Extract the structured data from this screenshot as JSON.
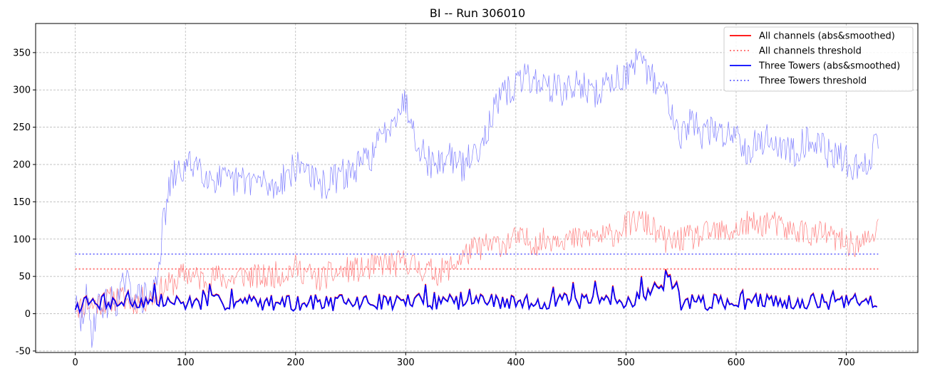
{
  "chart_data": {
    "type": "line",
    "title": "BI -- Run 306010",
    "xlabel": "",
    "ylabel": "",
    "xlim": [
      -36,
      765
    ],
    "ylim": [
      -52,
      389
    ],
    "xticks": [
      0,
      100,
      200,
      300,
      400,
      500,
      600,
      700
    ],
    "yticks": [
      -50,
      0,
      50,
      100,
      150,
      200,
      250,
      300,
      350
    ],
    "grid": true,
    "legend_position": "top-right",
    "colors": {
      "all_channels": "#ff0000",
      "three_towers": "#0000ff",
      "all_channels_threshold": "#ff6a6a",
      "three_towers_threshold": "#6b6bff",
      "all_channels_raw": "#ff8080",
      "three_towers_raw": "#8080ff"
    },
    "legend": [
      {
        "label": "All channels (abs&smoothed)",
        "color": "#ff0000",
        "style": "solid"
      },
      {
        "label": "All channels threshold",
        "color": "#ff6a6a",
        "style": "dotted"
      },
      {
        "label": "Three Towers (abs&smoothed)",
        "color": "#0000ff",
        "style": "solid"
      },
      {
        "label": "Three Towers threshold",
        "color": "#6b6bff",
        "style": "dotted"
      }
    ],
    "thresholds": [
      {
        "series": "All channels threshold",
        "value": 60,
        "x_range": [
          0,
          729
        ]
      },
      {
        "series": "Three Towers threshold",
        "value": 80,
        "x_range": [
          0,
          729
        ]
      }
    ],
    "raw_series_outline": [
      {
        "series": "All channels (raw)",
        "x": [
          0,
          5,
          10,
          15,
          20,
          30,
          40,
          50,
          60,
          70,
          80,
          90,
          100,
          110,
          120,
          130,
          140,
          150,
          160,
          170,
          180,
          190,
          200,
          210,
          220,
          230,
          240,
          250,
          260,
          270,
          280,
          290,
          300,
          310,
          320,
          330,
          340,
          350,
          360,
          370,
          380,
          390,
          400,
          410,
          420,
          430,
          440,
          450,
          460,
          470,
          480,
          490,
          500,
          510,
          520,
          530,
          540,
          550,
          560,
          570,
          580,
          590,
          600,
          610,
          620,
          630,
          640,
          650,
          660,
          670,
          680,
          690,
          700,
          710,
          720,
          729
        ],
        "y": [
          12,
          8,
          15,
          10,
          14,
          18,
          22,
          15,
          18,
          22,
          35,
          42,
          55,
          48,
          45,
          50,
          45,
          52,
          50,
          48,
          52,
          55,
          62,
          55,
          45,
          52,
          55,
          60,
          58,
          62,
          68,
          65,
          72,
          62,
          58,
          55,
          62,
          75,
          85,
          90,
          92,
          95,
          100,
          98,
          95,
          100,
          105,
          98,
          100,
          105,
          102,
          108,
          118,
          125,
          120,
          105,
          95,
          100,
          102,
          105,
          110,
          108,
          112,
          120,
          118,
          125,
          115,
          110,
          112,
          105,
          108,
          100,
          95,
          92,
          98,
          115
        ]
      },
      {
        "series": "Three Towers (raw)",
        "x": [
          0,
          5,
          10,
          15,
          20,
          30,
          40,
          45,
          50,
          60,
          70,
          75,
          80,
          85,
          90,
          100,
          110,
          120,
          130,
          140,
          150,
          160,
          170,
          180,
          190,
          200,
          210,
          220,
          230,
          240,
          250,
          260,
          270,
          280,
          290,
          300,
          310,
          320,
          330,
          340,
          350,
          360,
          370,
          380,
          390,
          400,
          410,
          420,
          430,
          440,
          450,
          460,
          470,
          480,
          490,
          500,
          510,
          520,
          530,
          540,
          550,
          560,
          570,
          580,
          590,
          600,
          610,
          620,
          630,
          640,
          650,
          660,
          670,
          680,
          690,
          700,
          710,
          720,
          729
        ],
        "y": [
          12,
          -15,
          20,
          -25,
          10,
          15,
          20,
          45,
          30,
          20,
          25,
          60,
          120,
          165,
          185,
          195,
          205,
          185,
          180,
          175,
          178,
          180,
          175,
          168,
          185,
          195,
          200,
          170,
          175,
          185,
          190,
          200,
          215,
          240,
          270,
          285,
          235,
          205,
          200,
          215,
          195,
          210,
          235,
          270,
          295,
          305,
          320,
          310,
          305,
          300,
          300,
          310,
          290,
          305,
          315,
          320,
          335,
          325,
          305,
          285,
          240,
          260,
          240,
          245,
          240,
          245,
          220,
          230,
          235,
          225,
          215,
          230,
          235,
          220,
          210,
          205,
          195,
          200,
          240
        ]
      }
    ],
    "smoothed_series_outline": [
      {
        "series": "All channels (abs&smoothed)",
        "x": [
          0,
          25,
          50,
          75,
          100,
          150,
          200,
          250,
          300,
          350,
          400,
          450,
          500,
          545,
          550,
          600,
          650,
          700,
          729
        ],
        "y": [
          10,
          15,
          14,
          16,
          14,
          15,
          13,
          14,
          16,
          15,
          14,
          16,
          15,
          45,
          14,
          15,
          16,
          14,
          18
        ]
      },
      {
        "series": "Three Towers (abs&smoothed)",
        "x": [
          0,
          25,
          50,
          75,
          100,
          150,
          200,
          250,
          300,
          350,
          400,
          450,
          500,
          545,
          550,
          600,
          650,
          700,
          729
        ],
        "y": [
          10,
          15,
          14,
          16,
          14,
          15,
          13,
          14,
          16,
          15,
          14,
          16,
          15,
          44,
          14,
          15,
          16,
          14,
          18
        ]
      }
    ]
  }
}
